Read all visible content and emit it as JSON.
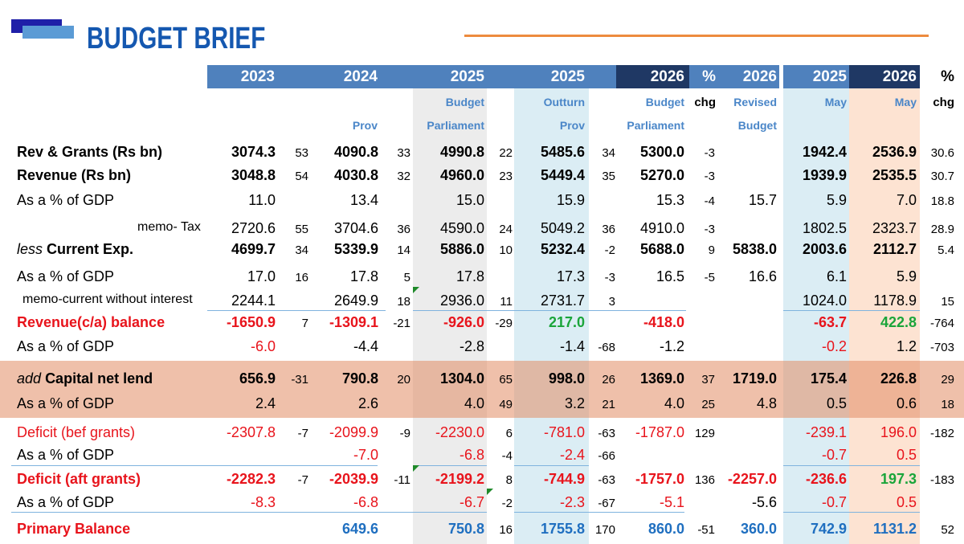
{
  "title": "BUDGET BRIEF",
  "headers": {
    "years": [
      "2023",
      "2024",
      "2025",
      "2025",
      "2026",
      "%",
      "2026",
      "2025",
      "2026",
      "%"
    ],
    "sub1": [
      "",
      "",
      "Budget",
      "Outturn",
      "Budget",
      "chg",
      "Revised",
      "May",
      "May",
      "chg"
    ],
    "sub2": [
      "",
      "Prov",
      "Parliament",
      "Prov",
      "Parliament",
      "",
      "Budget",
      "",
      "",
      ""
    ]
  },
  "colors": {
    "accent": "#1558b0",
    "orange": "#ed8b3e",
    "header_blue": "#4f81bd",
    "header_dark": "#1f3864",
    "negative": "#e8141c",
    "positive": "#1aa53a",
    "highlight_band": "#f2c2a8"
  },
  "rows": [
    {
      "label": "Rev & Grants (Rs bn)",
      "v": [
        "3074.3",
        "53",
        "4090.8",
        "33",
        "4990.8",
        "22",
        "5485.6",
        "34",
        "5300.0",
        "-3",
        "",
        "1942.4",
        "2536.9",
        "30.6"
      ]
    },
    {
      "label": "Revenue (Rs bn)",
      "v": [
        "3048.8",
        "54",
        "4030.8",
        "32",
        "4960.0",
        "23",
        "5449.4",
        "35",
        "5270.0",
        "-3",
        "",
        "1939.9",
        "2535.5",
        "30.7"
      ]
    },
    {
      "label": "As a % of GDP",
      "v": [
        "11.0",
        "",
        "13.4",
        "",
        "15.0",
        "",
        "15.9",
        "",
        "15.3",
        "-4",
        "15.7",
        "5.9",
        "7.0",
        "18.8"
      ]
    },
    {
      "label": "memo- Tax",
      "v": [
        "2720.6",
        "55",
        "3704.6",
        "36",
        "4590.0",
        "24",
        "5049.2",
        "36",
        "4910.0",
        "-3",
        "",
        "1802.5",
        "2323.7",
        "28.9"
      ]
    },
    {
      "label_italic": "less",
      "label": "Current Exp.",
      "v": [
        "4699.7",
        "34",
        "5339.9",
        "14",
        "5886.0",
        "10",
        "5232.4",
        "-2",
        "5688.0",
        "9",
        "5838.0",
        "2003.6",
        "2112.7",
        "5.4"
      ]
    },
    {
      "label": "As a % of GDP",
      "v": [
        "17.0",
        "16",
        "17.8",
        "5",
        "17.8",
        "",
        "17.3",
        "-3",
        "16.5",
        "-5",
        "16.6",
        "6.1",
        "5.9",
        ""
      ]
    },
    {
      "label": "memo-current without interest",
      "v": [
        "2244.1",
        "",
        "2649.9",
        "18",
        "2936.0",
        "11",
        "2731.7",
        "3",
        "",
        "",
        "",
        "1024.0",
        "1178.9",
        "15"
      ]
    },
    {
      "label": "Revenue(c/a) balance",
      "v": [
        "-1650.9",
        "7",
        "-1309.1",
        "-21",
        "-926.0",
        "-29",
        "217.0",
        "",
        "-418.0",
        "",
        "",
        "-63.7",
        "422.8",
        "-764"
      ]
    },
    {
      "label": "As a % of GDP",
      "v": [
        "-6.0",
        "",
        "-4.4",
        "",
        "-2.8",
        "",
        "-1.4",
        "-68",
        "-1.2",
        "",
        "",
        "-0.2",
        "1.2",
        "-703"
      ]
    },
    {
      "label_italic": "add",
      "label": "Capital net lend",
      "v": [
        "656.9",
        "-31",
        "790.8",
        "20",
        "1304.0",
        "65",
        "998.0",
        "26",
        "1369.0",
        "37",
        "1719.0",
        "175.4",
        "226.8",
        "29"
      ]
    },
    {
      "label": "As a % of GDP",
      "v": [
        "2.4",
        "",
        "2.6",
        "",
        "4.0",
        "49",
        "3.2",
        "21",
        "4.0",
        "25",
        "4.8",
        "0.5",
        "0.6",
        "18"
      ]
    },
    {
      "label": "Deficit (bef grants)",
      "v": [
        "-2307.8",
        "-7",
        "-2099.9",
        "-9",
        "-2230.0",
        "6",
        "-781.0",
        "-63",
        "-1787.0",
        "129",
        "",
        "-239.1",
        "196.0",
        "-182"
      ]
    },
    {
      "label": "As a % of GDP",
      "v": [
        "",
        "",
        "-7.0",
        "",
        "-6.8",
        "-4",
        "-2.4",
        "-66",
        "",
        "",
        "",
        "-0.7",
        "0.5",
        ""
      ]
    },
    {
      "label": "Deficit (aft grants)",
      "v": [
        "-2282.3",
        "-7",
        "-2039.9",
        "-11",
        "-2199.2",
        "8",
        "-744.9",
        "-63",
        "-1757.0",
        "136",
        "-2257.0",
        "-236.6",
        "197.3",
        "-183"
      ]
    },
    {
      "label": "As a % of GDP",
      "v": [
        "-8.3",
        "",
        "-6.8",
        "",
        "-6.7",
        "-2",
        "-2.3",
        "-67",
        "-5.1",
        "",
        "-5.6",
        "-0.7",
        "0.5",
        ""
      ]
    },
    {
      "label": "Primary Balance",
      "v": [
        "",
        "",
        "649.6",
        "",
        "750.8",
        "16",
        "1755.8",
        "170",
        "860.0",
        "-51",
        "360.0",
        "742.9",
        "1131.2",
        "52"
      ]
    }
  ]
}
